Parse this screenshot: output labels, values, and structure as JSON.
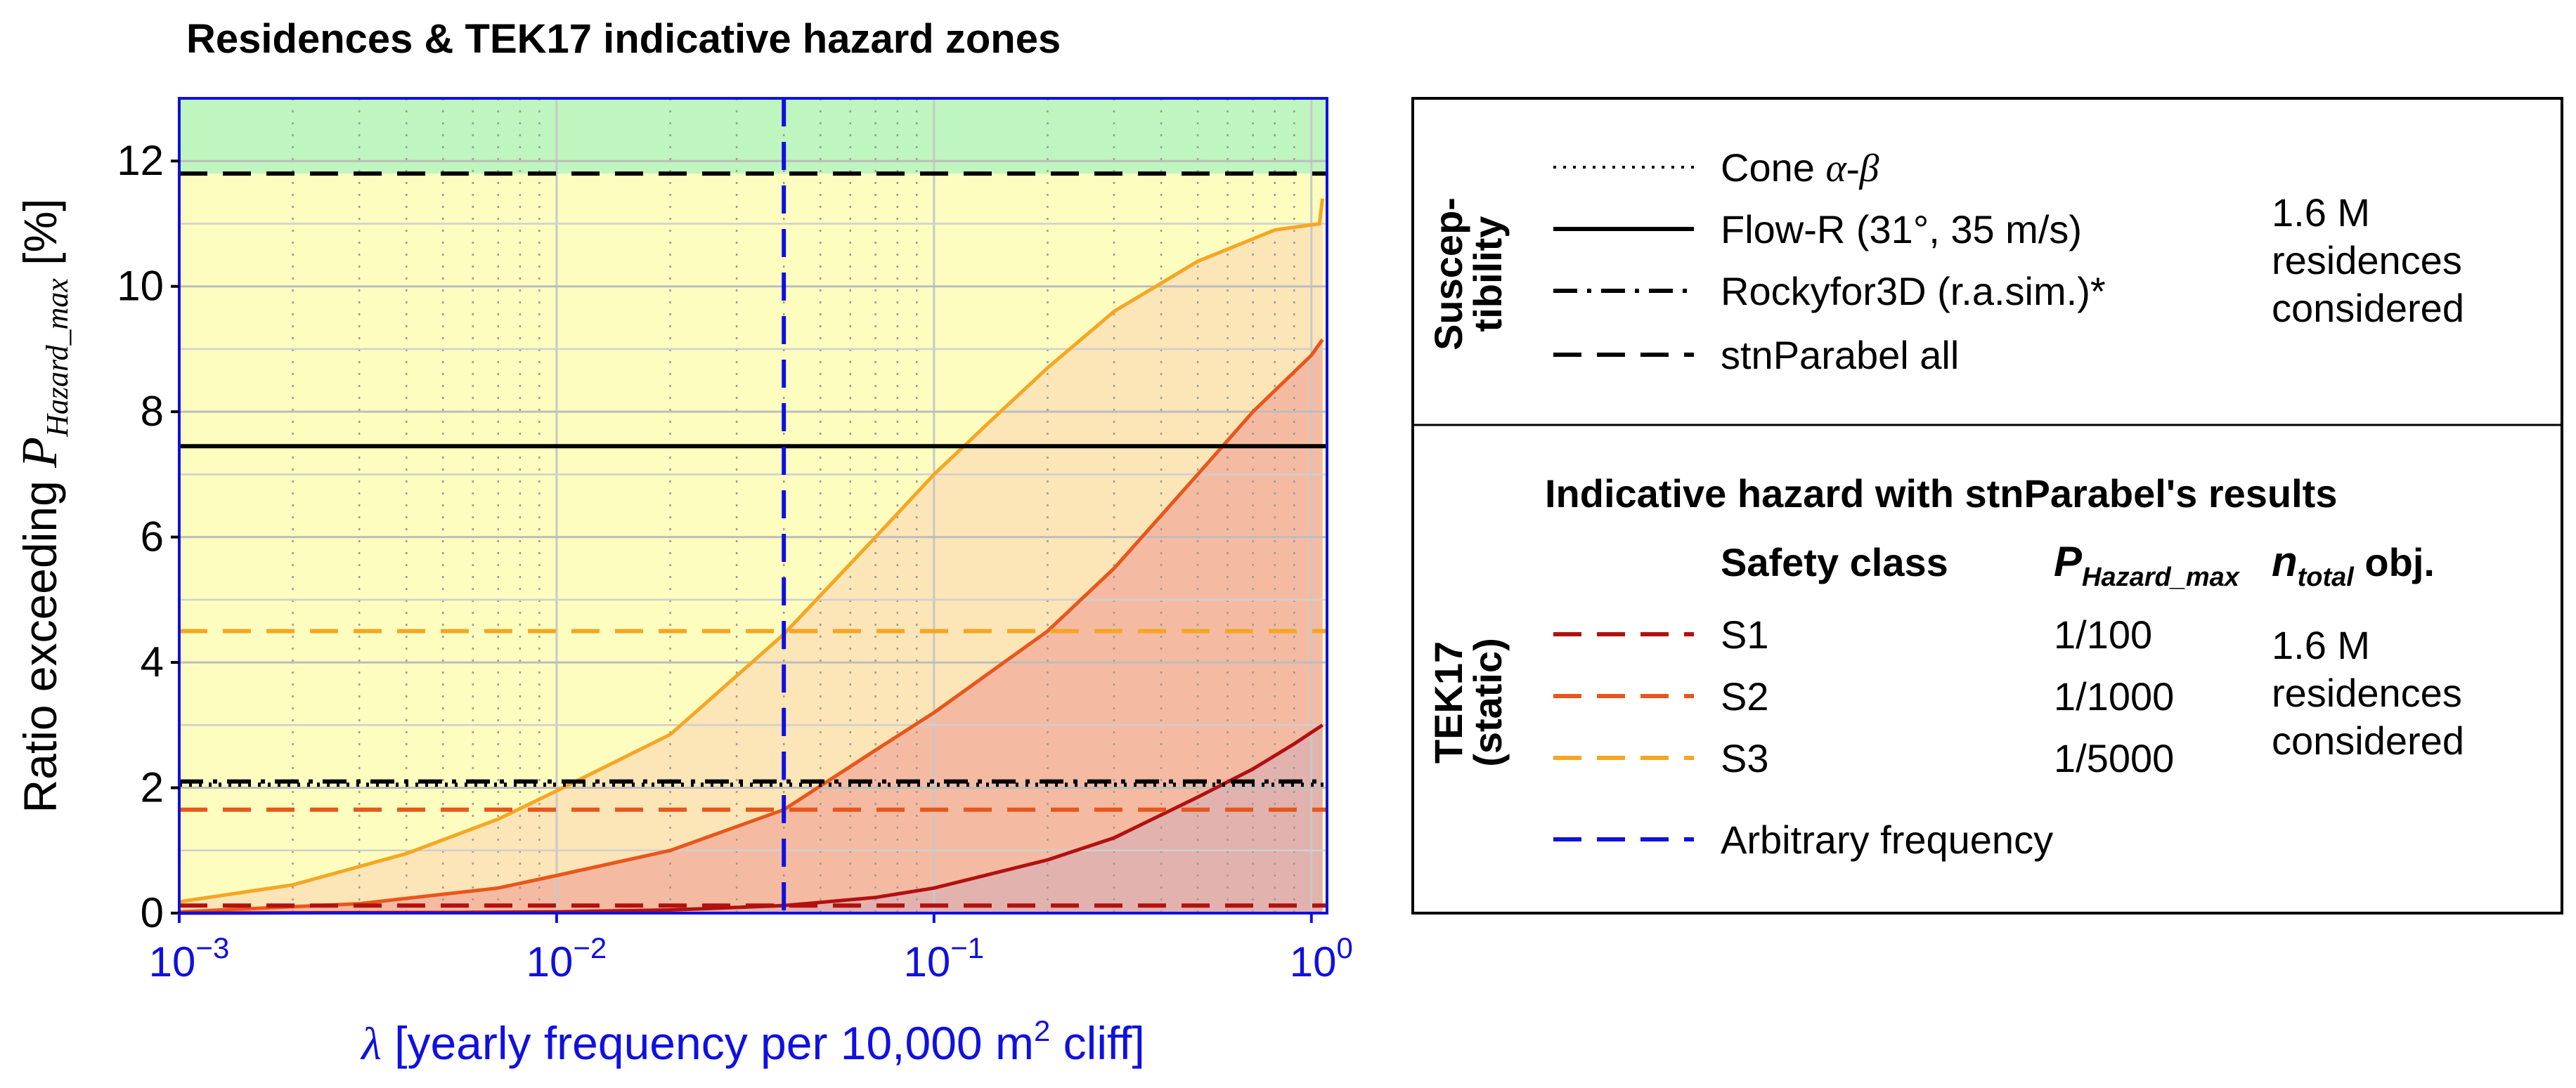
{
  "chart_data": {
    "type": "line",
    "title": "Residences & TEK17 indicative hazard zones",
    "xlabel": {
      "symbol": "λ",
      "pre": " [yearly frequency per 10,000 m",
      "sup": "2",
      "post": " cliff]"
    },
    "ylabel": {
      "pre": "Ratio exceeding ",
      "P": "P",
      "sub": "Hazard_max",
      "post": " [%]"
    },
    "xscale": "log",
    "xlim": [
      0.001,
      1.1
    ],
    "ylim": [
      0,
      13
    ],
    "x_ticks": [
      {
        "value": 0.001,
        "base": "10",
        "exp": "−3"
      },
      {
        "value": 0.01,
        "base": "10",
        "exp": "−2"
      },
      {
        "value": 0.1,
        "base": "10",
        "exp": "−1"
      },
      {
        "value": 1,
        "base": "10",
        "exp": "0"
      }
    ],
    "y_ticks": [
      0,
      2,
      4,
      6,
      8,
      10,
      12
    ],
    "hazard_curves": [
      {
        "name": "S3",
        "color": "#f5a623",
        "fill": "#fbe0b5",
        "points": [
          [
            0.001,
            0.18
          ],
          [
            0.002,
            0.45
          ],
          [
            0.004,
            0.95
          ],
          [
            0.007,
            1.5
          ],
          [
            0.01,
            1.95
          ],
          [
            0.02,
            2.85
          ],
          [
            0.04,
            4.45
          ],
          [
            0.07,
            6.0
          ],
          [
            0.1,
            7.0
          ],
          [
            0.15,
            8.0
          ],
          [
            0.2,
            8.7
          ],
          [
            0.3,
            9.6
          ],
          [
            0.5,
            10.4
          ],
          [
            0.8,
            10.9
          ],
          [
            1.05,
            11.0
          ],
          [
            1.07,
            11.4
          ]
        ]
      },
      {
        "name": "S2",
        "color": "#e8561b",
        "fill": "#f3b49f",
        "points": [
          [
            0.001,
            0.02
          ],
          [
            0.003,
            0.15
          ],
          [
            0.007,
            0.4
          ],
          [
            0.01,
            0.6
          ],
          [
            0.02,
            1.0
          ],
          [
            0.04,
            1.65
          ],
          [
            0.07,
            2.6
          ],
          [
            0.1,
            3.2
          ],
          [
            0.2,
            4.5
          ],
          [
            0.3,
            5.5
          ],
          [
            0.5,
            7.0
          ],
          [
            0.7,
            8.0
          ],
          [
            1.0,
            8.9
          ],
          [
            1.07,
            9.15
          ]
        ]
      },
      {
        "name": "S1",
        "color": "#b31010",
        "fill": "#deb0b0",
        "points": [
          [
            0.001,
            0.0
          ],
          [
            0.005,
            0.01
          ],
          [
            0.01,
            0.02
          ],
          [
            0.02,
            0.05
          ],
          [
            0.04,
            0.12
          ],
          [
            0.07,
            0.25
          ],
          [
            0.1,
            0.4
          ],
          [
            0.2,
            0.85
          ],
          [
            0.3,
            1.2
          ],
          [
            0.5,
            1.85
          ],
          [
            0.7,
            2.3
          ],
          [
            0.9,
            2.7
          ],
          [
            1.07,
            3.0
          ]
        ]
      }
    ],
    "horizontal_lines": [
      {
        "name": "stnParabel all",
        "y": 11.8,
        "style": "dashed",
        "color": "#000000"
      },
      {
        "name": "Flow-R (31°, 35 m/s)",
        "y": 7.45,
        "style": "solid",
        "color": "#000000"
      },
      {
        "name": "Rockyfor3D (r.a.sim.)*",
        "y": 2.1,
        "style": "dashdot",
        "color": "#000000"
      },
      {
        "name": "Cone α-β",
        "y": 2.05,
        "style": "dotted",
        "color": "#000000"
      },
      {
        "name": "S3",
        "y": 4.5,
        "style": "dashed",
        "color": "#f5a623"
      },
      {
        "name": "S2",
        "y": 1.65,
        "style": "dashed",
        "color": "#e8561b"
      },
      {
        "name": "S1",
        "y": 0.12,
        "style": "dashed",
        "color": "#b31010"
      }
    ],
    "vertical_line": {
      "name": "Arbitrary frequency",
      "x": 0.04,
      "style": "dashed",
      "color": "#1010e0"
    },
    "background_zones": [
      {
        "name": "above-all",
        "y0": 11.8,
        "y1": 13,
        "color": "#bff5bf"
      },
      {
        "name": "below-all",
        "y0": 0,
        "y1": 11.8,
        "color": "#fdfdbf"
      }
    ]
  },
  "legend": {
    "susceptibility_section": "Suscep-\ntibility",
    "susceptibility_items": [
      {
        "label": "Cone ",
        "math": "α-β",
        "style": "dotted",
        "color": "#000000"
      },
      {
        "label": "Flow-R (31°, 35 m/s)",
        "style": "solid",
        "color": "#000000"
      },
      {
        "label": "Rockyfor3D (r.a.sim.)*",
        "style": "dashdot",
        "color": "#000000"
      },
      {
        "label": "stnParabel all",
        "style": "dashed",
        "color": "#000000"
      }
    ],
    "residences_note_1": [
      "1.6 M",
      "residences",
      "considered"
    ],
    "tek17_section": "TEK17\n(static)",
    "tek17_heading": "Indicative hazard with stnParabel's results",
    "col_safety": "Safety class",
    "col_p": "P",
    "col_p_sub": "Hazard_max",
    "col_n": "n",
    "col_n_sub": "total",
    "col_n_post": " obj.",
    "tek17_items": [
      {
        "label": "S1",
        "p": "1/100",
        "color": "#b31010"
      },
      {
        "label": "S2",
        "p": "1/1000",
        "color": "#e8561b"
      },
      {
        "label": "S3",
        "p": "1/5000",
        "color": "#f5a623"
      }
    ],
    "residences_note_2": [
      "1.6 M",
      "residences",
      "considered"
    ],
    "arbitrary_label": "Arbitrary frequency",
    "arbitrary_color": "#1010e0"
  }
}
